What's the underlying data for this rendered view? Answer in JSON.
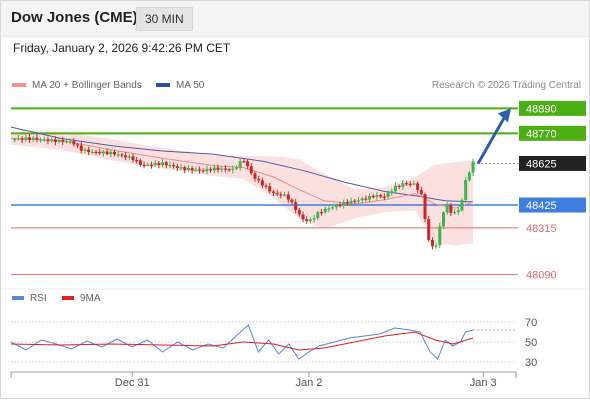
{
  "header": {
    "title": "Dow Jones (CME)",
    "timeframe": "30 MIN"
  },
  "datetime": "Friday, January 2, 2026 9:42:26 PM CET",
  "copyright": "Research © 2026 Trading Central",
  "colors": {
    "resistance": "#4caf14",
    "support": "#3d7ede",
    "target_low": "#e76a6a",
    "arrow": "#2d5fa8",
    "up_candle": "#3cb54a",
    "down_candle": "#c62828",
    "ma20": "#e88c8c",
    "bollinger_fill": "#fcdada",
    "ma50": "#4c5fa3",
    "rsi": "#5a86d8",
    "rsi_ma": "#e32020"
  },
  "chart_data": [
    {
      "type": "candlestick",
      "legend": [
        {
          "label": "MA 20 + Bollinger Bands",
          "color": "#f29292"
        },
        {
          "label": "MA 50",
          "color": "#2e4fa0"
        }
      ],
      "ylim": [
        48040,
        48940
      ],
      "x_ticks": [
        {
          "label": "Dec 31",
          "pos": 0.24
        },
        {
          "label": "Jan 2",
          "pos": 0.59
        },
        {
          "label": "Jan 3",
          "pos": 0.935
        }
      ],
      "levels": [
        {
          "value": 48890,
          "label": "48890",
          "kind": "resistance"
        },
        {
          "value": 48770,
          "label": "48770",
          "kind": "resistance"
        },
        {
          "value": 48625,
          "label": "48625",
          "kind": "last"
        },
        {
          "value": 48425,
          "label": "48425",
          "kind": "pivot"
        },
        {
          "value": 48315,
          "label": "48315",
          "kind": "support"
        },
        {
          "value": 48090,
          "label": "48090",
          "kind": "support"
        }
      ],
      "price_path": [
        [
          0.0,
          48742
        ],
        [
          0.04,
          48745
        ],
        [
          0.08,
          48735
        ],
        [
          0.12,
          48730
        ],
        [
          0.14,
          48690
        ],
        [
          0.16,
          48680
        ],
        [
          0.2,
          48675
        ],
        [
          0.24,
          48650
        ],
        [
          0.26,
          48615
        ],
        [
          0.3,
          48625
        ],
        [
          0.34,
          48600
        ],
        [
          0.38,
          48590
        ],
        [
          0.4,
          48600
        ],
        [
          0.44,
          48595
        ],
        [
          0.46,
          48645
        ],
        [
          0.48,
          48560
        ],
        [
          0.5,
          48520
        ],
        [
          0.52,
          48480
        ],
        [
          0.545,
          48470
        ],
        [
          0.56,
          48420
        ],
        [
          0.575,
          48360
        ],
        [
          0.59,
          48345
        ],
        [
          0.61,
          48390
        ],
        [
          0.63,
          48410
        ],
        [
          0.66,
          48435
        ],
        [
          0.7,
          48455
        ],
        [
          0.72,
          48470
        ],
        [
          0.74,
          48465
        ],
        [
          0.76,
          48510
        ],
        [
          0.78,
          48530
        ],
        [
          0.8,
          48525
        ],
        [
          0.815,
          48460
        ],
        [
          0.825,
          48260
        ],
        [
          0.84,
          48210
        ],
        [
          0.85,
          48330
        ],
        [
          0.86,
          48430
        ],
        [
          0.875,
          48380
        ],
        [
          0.89,
          48410
        ],
        [
          0.9,
          48540
        ],
        [
          0.915,
          48628
        ]
      ],
      "ma20": [
        [
          0.0,
          48745
        ],
        [
          0.1,
          48735
        ],
        [
          0.2,
          48690
        ],
        [
          0.3,
          48650
        ],
        [
          0.4,
          48615
        ],
        [
          0.46,
          48605
        ],
        [
          0.52,
          48560
        ],
        [
          0.57,
          48500
        ],
        [
          0.62,
          48445
        ],
        [
          0.68,
          48430
        ],
        [
          0.74,
          48450
        ],
        [
          0.8,
          48480
        ],
        [
          0.84,
          48430
        ],
        [
          0.88,
          48410
        ],
        [
          0.915,
          48440
        ]
      ],
      "bollinger_upper": [
        [
          0.0,
          48775
        ],
        [
          0.1,
          48780
        ],
        [
          0.2,
          48740
        ],
        [
          0.3,
          48700
        ],
        [
          0.4,
          48665
        ],
        [
          0.46,
          48660
        ],
        [
          0.52,
          48660
        ],
        [
          0.57,
          48645
        ],
        [
          0.62,
          48575
        ],
        [
          0.68,
          48500
        ],
        [
          0.74,
          48510
        ],
        [
          0.8,
          48560
        ],
        [
          0.84,
          48620
        ],
        [
          0.88,
          48630
        ],
        [
          0.915,
          48640
        ]
      ],
      "bollinger_lower": [
        [
          0.0,
          48715
        ],
        [
          0.1,
          48690
        ],
        [
          0.2,
          48640
        ],
        [
          0.3,
          48600
        ],
        [
          0.4,
          48565
        ],
        [
          0.46,
          48550
        ],
        [
          0.52,
          48460
        ],
        [
          0.57,
          48360
        ],
        [
          0.62,
          48310
        ],
        [
          0.68,
          48360
        ],
        [
          0.74,
          48390
        ],
        [
          0.8,
          48400
        ],
        [
          0.84,
          48240
        ],
        [
          0.88,
          48230
        ],
        [
          0.915,
          48240
        ]
      ],
      "ma50": [
        [
          0.0,
          48800
        ],
        [
          0.1,
          48745
        ],
        [
          0.2,
          48710
        ],
        [
          0.3,
          48685
        ],
        [
          0.4,
          48670
        ],
        [
          0.5,
          48635
        ],
        [
          0.58,
          48590
        ],
        [
          0.66,
          48535
        ],
        [
          0.74,
          48490
        ],
        [
          0.8,
          48470
        ],
        [
          0.86,
          48445
        ],
        [
          0.915,
          48440
        ]
      ],
      "projection": {
        "from": [
          0.925,
          48625
        ],
        "to": [
          0.99,
          48890
        ]
      }
    },
    {
      "type": "line",
      "legend": [
        {
          "label": "RSI",
          "color": "#5a86d8"
        },
        {
          "label": "9MA",
          "color": "#e32020"
        }
      ],
      "ylim": [
        20,
        80
      ],
      "y_ticks": [
        70,
        50,
        30
      ],
      "rsi": [
        [
          0.0,
          50
        ],
        [
          0.03,
          42
        ],
        [
          0.06,
          52
        ],
        [
          0.09,
          48
        ],
        [
          0.12,
          43
        ],
        [
          0.15,
          51
        ],
        [
          0.18,
          45
        ],
        [
          0.21,
          53
        ],
        [
          0.24,
          45
        ],
        [
          0.27,
          52
        ],
        [
          0.3,
          40
        ],
        [
          0.33,
          50
        ],
        [
          0.36,
          42
        ],
        [
          0.39,
          48
        ],
        [
          0.42,
          44
        ],
        [
          0.45,
          58
        ],
        [
          0.47,
          67
        ],
        [
          0.49,
          40
        ],
        [
          0.51,
          52
        ],
        [
          0.53,
          38
        ],
        [
          0.55,
          48
        ],
        [
          0.57,
          33
        ],
        [
          0.59,
          40
        ],
        [
          0.61,
          46
        ],
        [
          0.64,
          50
        ],
        [
          0.67,
          54
        ],
        [
          0.7,
          56
        ],
        [
          0.73,
          58
        ],
        [
          0.76,
          64
        ],
        [
          0.79,
          62
        ],
        [
          0.81,
          60
        ],
        [
          0.83,
          40
        ],
        [
          0.845,
          33
        ],
        [
          0.86,
          52
        ],
        [
          0.875,
          46
        ],
        [
          0.89,
          50
        ],
        [
          0.9,
          60
        ],
        [
          0.915,
          62
        ]
      ],
      "rsi_ma": [
        [
          0.0,
          48
        ],
        [
          0.1,
          47
        ],
        [
          0.2,
          48
        ],
        [
          0.3,
          47
        ],
        [
          0.4,
          46
        ],
        [
          0.46,
          50
        ],
        [
          0.52,
          48
        ],
        [
          0.57,
          42
        ],
        [
          0.62,
          44
        ],
        [
          0.68,
          50
        ],
        [
          0.74,
          56
        ],
        [
          0.8,
          60
        ],
        [
          0.84,
          52
        ],
        [
          0.875,
          48
        ],
        [
          0.915,
          54
        ]
      ]
    }
  ]
}
